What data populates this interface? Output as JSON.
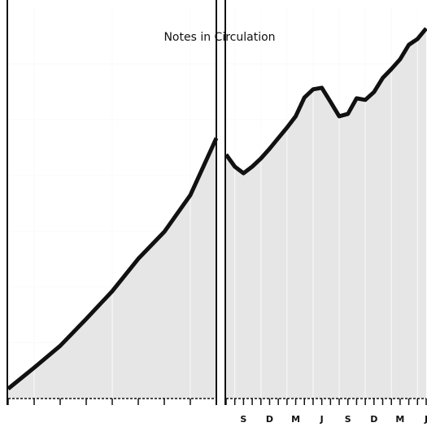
{
  "chart_data": [
    {
      "type": "line",
      "title": "Notes in Circulation",
      "categories": [
        null,
        null,
        null,
        null,
        null,
        null,
        null,
        null,
        null
      ],
      "values": [
        2.5,
        7.9,
        13.5,
        20.4,
        27.5,
        35.8,
        42.7,
        52.1,
        66.7
      ],
      "color": "#111111",
      "fill": "#e6e6e6",
      "ylim": [
        0,
        100
      ],
      "grid": true
    },
    {
      "type": "line",
      "categories": [
        null,
        null,
        "S",
        null,
        null,
        "D",
        null,
        null,
        "M",
        null,
        null,
        "J",
        null,
        null,
        "S",
        null,
        null,
        "D",
        null,
        null,
        "M",
        null,
        null,
        "J"
      ],
      "values": [
        62.5,
        59.4,
        57.7,
        59.4,
        61.5,
        64.0,
        66.7,
        69.4,
        72.3,
        77.1,
        79.2,
        79.6,
        76.0,
        72.3,
        72.9,
        76.9,
        76.5,
        78.5,
        82.1,
        84.4,
        86.9,
        90.6,
        92.1,
        94.8
      ],
      "color": "#111111",
      "fill": "#e6e6e6",
      "ylim": [
        0,
        100
      ],
      "grid": true
    }
  ]
}
